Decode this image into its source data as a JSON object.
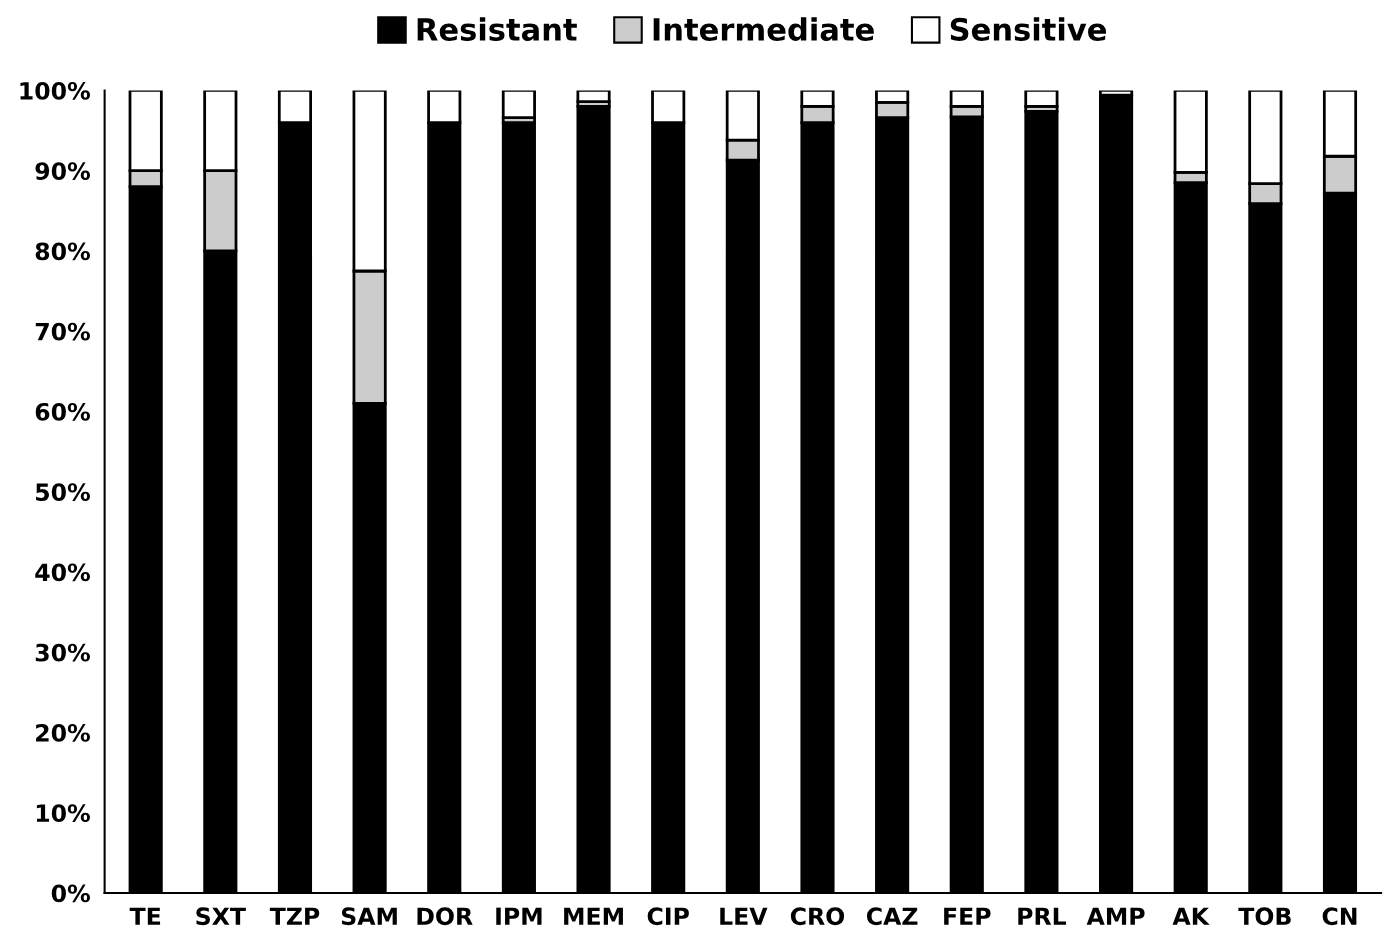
{
  "chart_data": {
    "type": "bar",
    "stacked": true,
    "legend": "top",
    "grid": false,
    "categories": [
      "TE",
      "SXT",
      "TZP",
      "SAM",
      "DOR",
      "IPM",
      "MEM",
      "CIP",
      "LEV",
      "CRO",
      "CAZ",
      "FEP",
      "PRL",
      "AMP",
      "AK",
      "TOB",
      "CN"
    ],
    "series": [
      {
        "name": "Resistant",
        "color": "#000000",
        "values": [
          88,
          80,
          96,
          61,
          96,
          96,
          98,
          96,
          91.3,
          96,
          96.6,
          96.7,
          97.4,
          99.4,
          88.5,
          85.9,
          87.2
        ]
      },
      {
        "name": "Intermediate",
        "color": "#cccccc",
        "values": [
          2,
          10,
          0,
          16.5,
          0,
          0.6,
          0.6,
          0,
          2.5,
          2,
          1.9,
          1.3,
          0.6,
          0,
          1.3,
          2.5,
          4.6
        ]
      },
      {
        "name": "Sensitive",
        "color": "#ffffff",
        "values": [
          10,
          10,
          4,
          22.5,
          4,
          3.4,
          1.4,
          4,
          6.2,
          2,
          1.5,
          2,
          2,
          0.6,
          10.2,
          11.6,
          8.2
        ]
      }
    ],
    "ylim": [
      0,
      100
    ],
    "yticks": [
      {
        "value": 0,
        "label": "0%"
      },
      {
        "value": 10,
        "label": "10%"
      },
      {
        "value": 20,
        "label": "20%"
      },
      {
        "value": 30,
        "label": "30%"
      },
      {
        "value": 40,
        "label": "40%"
      },
      {
        "value": 50,
        "label": "50%"
      },
      {
        "value": 60,
        "label": "60%"
      },
      {
        "value": 70,
        "label": "70%"
      },
      {
        "value": 80,
        "label": "80%"
      },
      {
        "value": 90,
        "label": "90%"
      },
      {
        "value": 100,
        "label": "100%"
      }
    ]
  }
}
